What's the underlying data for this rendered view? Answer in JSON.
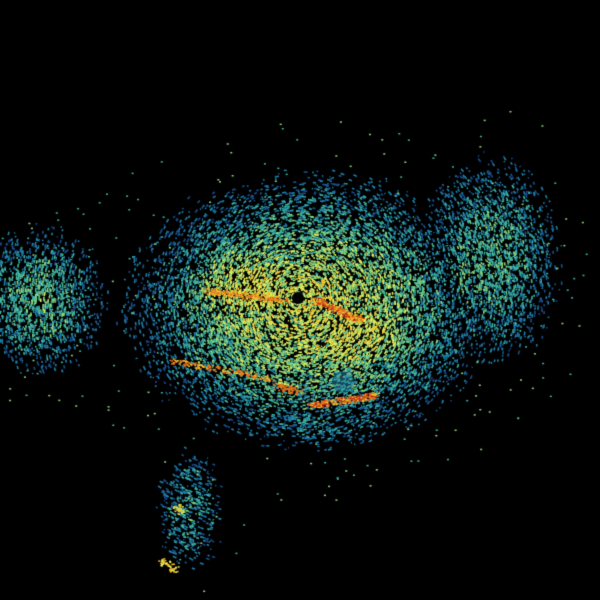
{
  "image": {
    "kind": "radar-reflectivity-scan",
    "background_color": "#000000",
    "palette": [
      "#1a4f8c",
      "#1f7fa8",
      "#3fb5a0",
      "#8fd67a",
      "#e4ec5a",
      "#f5c02a",
      "#e8701a",
      "#c0281a"
    ],
    "center_gap_color": "#000000"
  }
}
